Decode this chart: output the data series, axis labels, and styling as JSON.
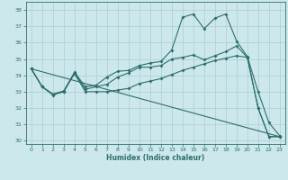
{
  "xlabel": "Humidex (Indice chaleur)",
  "xlim": [
    -0.5,
    23.5
  ],
  "ylim": [
    29.8,
    38.5
  ],
  "yticks": [
    30,
    31,
    32,
    33,
    34,
    35,
    36,
    37,
    38
  ],
  "xticks": [
    0,
    1,
    2,
    3,
    4,
    5,
    6,
    7,
    8,
    9,
    10,
    11,
    12,
    13,
    14,
    15,
    16,
    17,
    18,
    19,
    20,
    21,
    22,
    23
  ],
  "bg_color": "#cce8ed",
  "line_color": "#2e6e6b",
  "grid_color": "#aacdd4",
  "line1_x": [
    0,
    1,
    2,
    3,
    4,
    5,
    6,
    7,
    8,
    9,
    10,
    11,
    12,
    13,
    14,
    15,
    16,
    17,
    18,
    19,
    20,
    21,
    22,
    23
  ],
  "line1_y": [
    34.4,
    33.3,
    32.8,
    33.0,
    34.2,
    33.3,
    33.4,
    33.9,
    34.25,
    34.3,
    34.6,
    34.75,
    34.85,
    35.55,
    37.55,
    37.75,
    36.85,
    37.5,
    37.75,
    36.1,
    35.15,
    33.0,
    31.1,
    30.3
  ],
  "line2_x": [
    0,
    1,
    2,
    3,
    4,
    5,
    6,
    7,
    8,
    9,
    10,
    11,
    12,
    13,
    14,
    15,
    16,
    17,
    18,
    19,
    20,
    21,
    22,
    23
  ],
  "line2_y": [
    34.4,
    33.3,
    32.85,
    33.05,
    34.15,
    33.15,
    33.3,
    33.45,
    33.9,
    34.15,
    34.5,
    34.5,
    34.6,
    35.0,
    35.1,
    35.25,
    34.95,
    35.2,
    35.45,
    35.8,
    35.1,
    32.0,
    30.25,
    30.25
  ],
  "line3_x": [
    0,
    1,
    2,
    3,
    4,
    5,
    6,
    7,
    8,
    9,
    10,
    11,
    12,
    13,
    14,
    15,
    16,
    17,
    18,
    19,
    20,
    21,
    22,
    23
  ],
  "line3_y": [
    34.4,
    33.3,
    32.85,
    33.0,
    34.1,
    33.0,
    33.0,
    33.0,
    33.1,
    33.2,
    33.5,
    33.65,
    33.8,
    34.05,
    34.3,
    34.5,
    34.7,
    34.9,
    35.05,
    35.2,
    35.1,
    32.0,
    30.25,
    30.25
  ],
  "line4_x": [
    0,
    23
  ],
  "line4_y": [
    34.4,
    30.25
  ],
  "marker_size": 2.0,
  "linewidth": 0.8,
  "tick_fontsize": 4.5,
  "xlabel_fontsize": 5.5
}
